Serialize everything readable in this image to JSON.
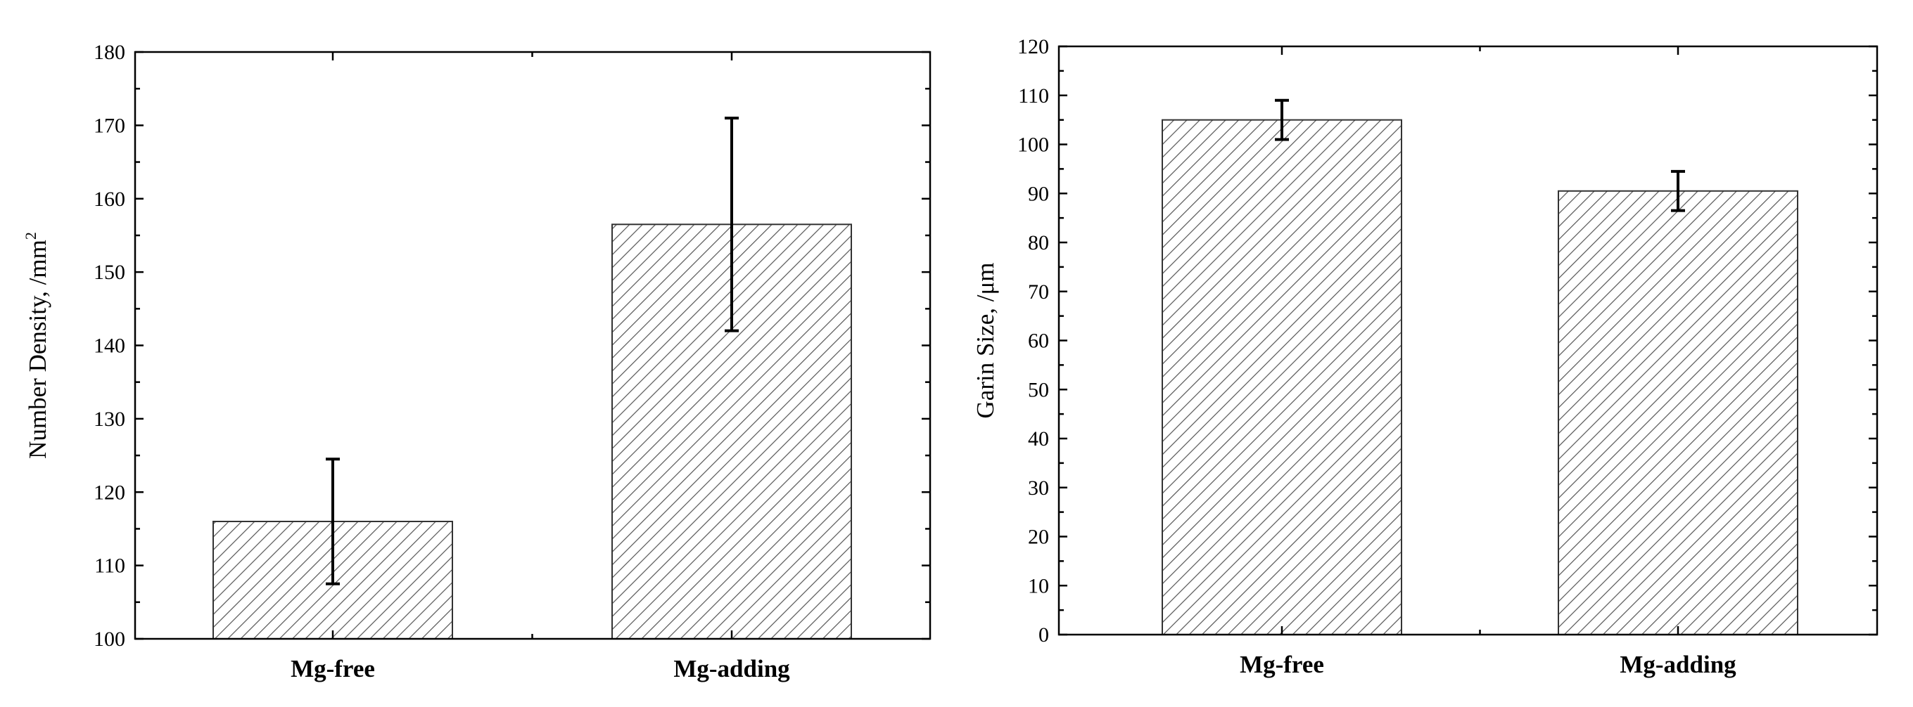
{
  "chart_data": [
    {
      "type": "bar",
      "categories": [
        "Mg-free",
        "Mg-adding"
      ],
      "values": [
        116,
        156.5
      ],
      "errors": [
        [
          107.5,
          124.5
        ],
        [
          142,
          171
        ]
      ],
      "ylabel": "Number Density,  /mm",
      "ylabel_superscript": "2",
      "xlabel": "",
      "ylim": [
        100,
        180
      ],
      "yticks": [
        "100",
        "110",
        "120",
        "130",
        "140",
        "150",
        "160",
        "170",
        "180"
      ],
      "pattern": "diagonal-hatch"
    },
    {
      "type": "bar",
      "categories": [
        "Mg-free",
        "Mg-adding"
      ],
      "values": [
        105,
        90.5
      ],
      "errors": [
        [
          101,
          109
        ],
        [
          86.5,
          94.5
        ]
      ],
      "ylabel": "Garin Size,  /μm",
      "xlabel": "",
      "ylim": [
        0,
        120
      ],
      "yticks": [
        "0",
        "10",
        "20",
        "30",
        "40",
        "50",
        "60",
        "70",
        "80",
        "90",
        "100",
        "110",
        "120"
      ],
      "pattern": "diagonal-hatch"
    }
  ]
}
